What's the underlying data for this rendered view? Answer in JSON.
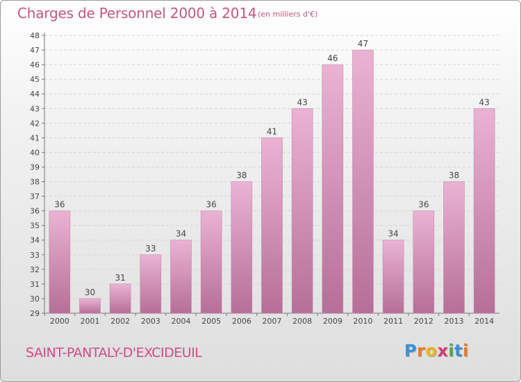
{
  "header": {
    "title": "Charges de Personnel 2000 à 2014",
    "unit": "(en milliers d'€)"
  },
  "footer": {
    "commune": "SAINT-PANTALY-D'EXCIDEUIL",
    "logo": {
      "letters": [
        "P",
        "r",
        "o",
        "x",
        "i",
        "t",
        "i"
      ],
      "colors": [
        "#3a8fd6",
        "#e8792b",
        "#e8b51c",
        "#d63c6e",
        "#4aa64a",
        "#3a8fd6",
        "#e8792b"
      ]
    }
  },
  "colors": {
    "bar_light": "#eab3d3",
    "bar_dark": "#b66f98",
    "title": "#c2567f"
  },
  "chart_data": {
    "type": "bar",
    "categories": [
      "2000",
      "2001",
      "2002",
      "2003",
      "2004",
      "2005",
      "2006",
      "2007",
      "2008",
      "2009",
      "2010",
      "2011",
      "2012",
      "2013",
      "2014"
    ],
    "values": [
      36,
      30,
      31,
      33,
      34,
      36,
      38,
      41,
      43,
      46,
      47,
      34,
      36,
      38,
      43
    ],
    "ylim": [
      29,
      48
    ],
    "yticks": [
      29,
      30,
      31,
      32,
      33,
      34,
      35,
      36,
      37,
      38,
      39,
      40,
      41,
      42,
      43,
      44,
      45,
      46,
      47,
      48
    ],
    "grid": true
  }
}
